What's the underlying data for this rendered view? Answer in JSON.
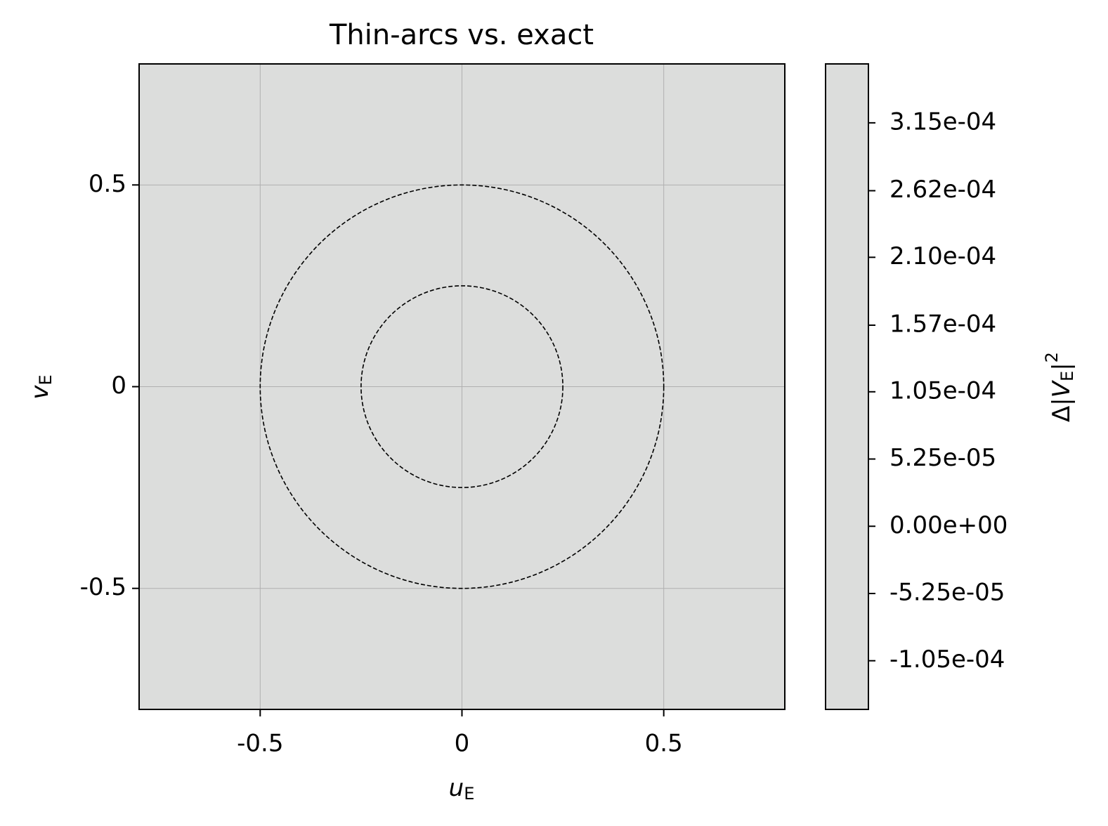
{
  "chart_data": {
    "type": "heatmap",
    "title": "Thin-arcs vs. exact",
    "x_label": {
      "main": "u",
      "sub": "E"
    },
    "y_label": {
      "main": "v",
      "sub": "E"
    },
    "colorbar_label": {
      "prefix": "Δ|",
      "main": "V",
      "sub": "E",
      "suffix": "|",
      "sup": "2"
    },
    "xlim": [
      -0.8,
      0.8
    ],
    "ylim": [
      -0.8,
      0.8
    ],
    "xticks": [
      -0.5,
      0.0,
      0.5
    ],
    "yticks": [
      -0.5,
      0.0,
      0.5
    ],
    "grid": true,
    "fill_color": "#dcdddc",
    "circle_radii": [
      0.25,
      0.5
    ],
    "colorbar_lim": [
      -0.000143,
      0.000361
    ],
    "colorbar_ticks": [
      {
        "value": 0.000315,
        "label": "3.15e-04"
      },
      {
        "value": 0.000262,
        "label": "2.62e-04"
      },
      {
        "value": 0.00021,
        "label": "2.10e-04"
      },
      {
        "value": 0.000157,
        "label": "1.57e-04"
      },
      {
        "value": 0.000105,
        "label": "1.05e-04"
      },
      {
        "value": 5.25e-05,
        "label": "5.25e-05"
      },
      {
        "value": 0,
        "label": "0.00e+00"
      },
      {
        "value": -5.25e-05,
        "label": "-5.25e-05"
      },
      {
        "value": -0.000105,
        "label": "-1.05e-04"
      }
    ]
  }
}
